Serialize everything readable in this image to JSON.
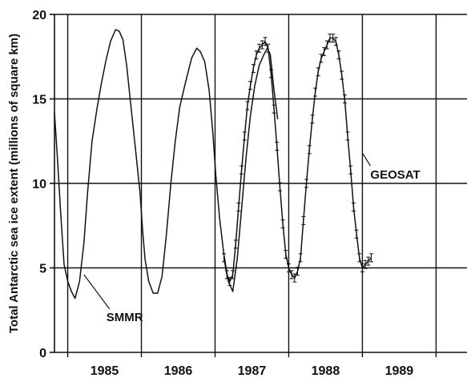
{
  "chart_data": {
    "type": "line",
    "title": "",
    "xlabel": "",
    "ylabel": "Total Antarctic sea ice extent (millions of square km)",
    "xlim": [
      1984.32,
      1989.92
    ],
    "ylim": [
      0,
      20
    ],
    "yticks": [
      0,
      5,
      10,
      15,
      20
    ],
    "xtick_labels": [
      {
        "label": "1985",
        "x": 1985.0
      },
      {
        "label": "1986",
        "x": 1986.0
      },
      {
        "label": "1987",
        "x": 1987.0
      },
      {
        "label": "1988",
        "x": 1988.0
      },
      {
        "label": "1989",
        "x": 1989.0
      }
    ],
    "year_boundaries": [
      1984.5,
      1985.5,
      1986.5,
      1987.5,
      1988.5,
      1989.5
    ],
    "grid_y": true,
    "series": [
      {
        "name": "SMMR",
        "color": "#111111",
        "x": [
          1984.32,
          1984.36,
          1984.4,
          1984.45,
          1984.5,
          1984.55,
          1984.6,
          1984.66,
          1984.72,
          1984.77,
          1984.83,
          1984.9,
          1984.96,
          1985.02,
          1985.08,
          1985.15,
          1985.2,
          1985.25,
          1985.3,
          1985.36,
          1985.42,
          1985.48,
          1985.52,
          1985.55,
          1985.6,
          1985.66,
          1985.72,
          1985.78,
          1985.84,
          1985.9,
          1985.96,
          1986.02,
          1986.1,
          1986.18,
          1986.25,
          1986.3,
          1986.36,
          1986.42,
          1986.47,
          1986.51,
          1986.56,
          1986.62,
          1986.68,
          1986.74,
          1986.8,
          1986.86,
          1986.92,
          1986.98,
          1987.04,
          1987.1,
          1987.16,
          1987.21,
          1987.25,
          1987.3,
          1987.35
        ],
        "y": [
          14.2,
          11.5,
          8.5,
          5.2,
          4.2,
          3.6,
          3.2,
          4.2,
          6.5,
          9.5,
          12.5,
          14.5,
          16.0,
          17.3,
          18.4,
          19.1,
          19.0,
          18.5,
          17.0,
          14.5,
          12.0,
          9.5,
          7.0,
          5.5,
          4.2,
          3.5,
          3.5,
          4.5,
          7.0,
          10.0,
          12.5,
          14.5,
          16.0,
          17.4,
          18.0,
          17.8,
          17.2,
          15.5,
          13.0,
          10.5,
          8.0,
          5.8,
          4.2,
          3.6,
          5.5,
          8.5,
          11.5,
          14.0,
          15.8,
          17.0,
          17.6,
          18.0,
          17.6,
          15.5,
          13.8
        ]
      },
      {
        "name": "GEOSAT",
        "color": "#111111",
        "x": [
          1986.62,
          1986.66,
          1986.7,
          1986.74,
          1986.78,
          1986.82,
          1986.86,
          1986.9,
          1986.94,
          1986.98,
          1987.02,
          1987.06,
          1987.1,
          1987.14,
          1987.18,
          1987.22,
          1987.26,
          1987.3,
          1987.34,
          1987.38,
          1987.42,
          1987.46,
          1987.5,
          1987.54,
          1987.58,
          1987.62,
          1987.66,
          1987.7,
          1987.74,
          1987.78,
          1987.82,
          1987.86,
          1987.9,
          1987.94,
          1987.98,
          1988.02,
          1988.06,
          1988.1,
          1988.14,
          1988.18,
          1988.22,
          1988.26,
          1988.3,
          1988.34,
          1988.38,
          1988.42,
          1988.46,
          1988.5,
          1988.54,
          1988.58,
          1988.62
        ],
        "y": [
          5.6,
          4.6,
          4.2,
          4.6,
          6.4,
          8.6,
          10.8,
          12.8,
          14.6,
          15.8,
          16.8,
          17.6,
          18.0,
          18.2,
          18.4,
          18.0,
          16.5,
          14.4,
          12.2,
          9.8,
          7.6,
          5.8,
          5.0,
          4.6,
          4.4,
          4.8,
          5.6,
          7.8,
          10.0,
          12.0,
          13.8,
          15.4,
          16.6,
          17.4,
          17.8,
          18.2,
          18.6,
          18.6,
          18.4,
          17.6,
          16.4,
          15.0,
          12.8,
          10.8,
          8.6,
          7.0,
          5.6,
          5.0,
          5.2,
          5.4,
          5.6
        ]
      }
    ],
    "annotations": [
      {
        "text": "SMMR",
        "points_to": [
          1984.72,
          4.6
        ]
      },
      {
        "text": "GEOSAT",
        "points_to": [
          1988.5,
          11.8
        ]
      }
    ]
  }
}
